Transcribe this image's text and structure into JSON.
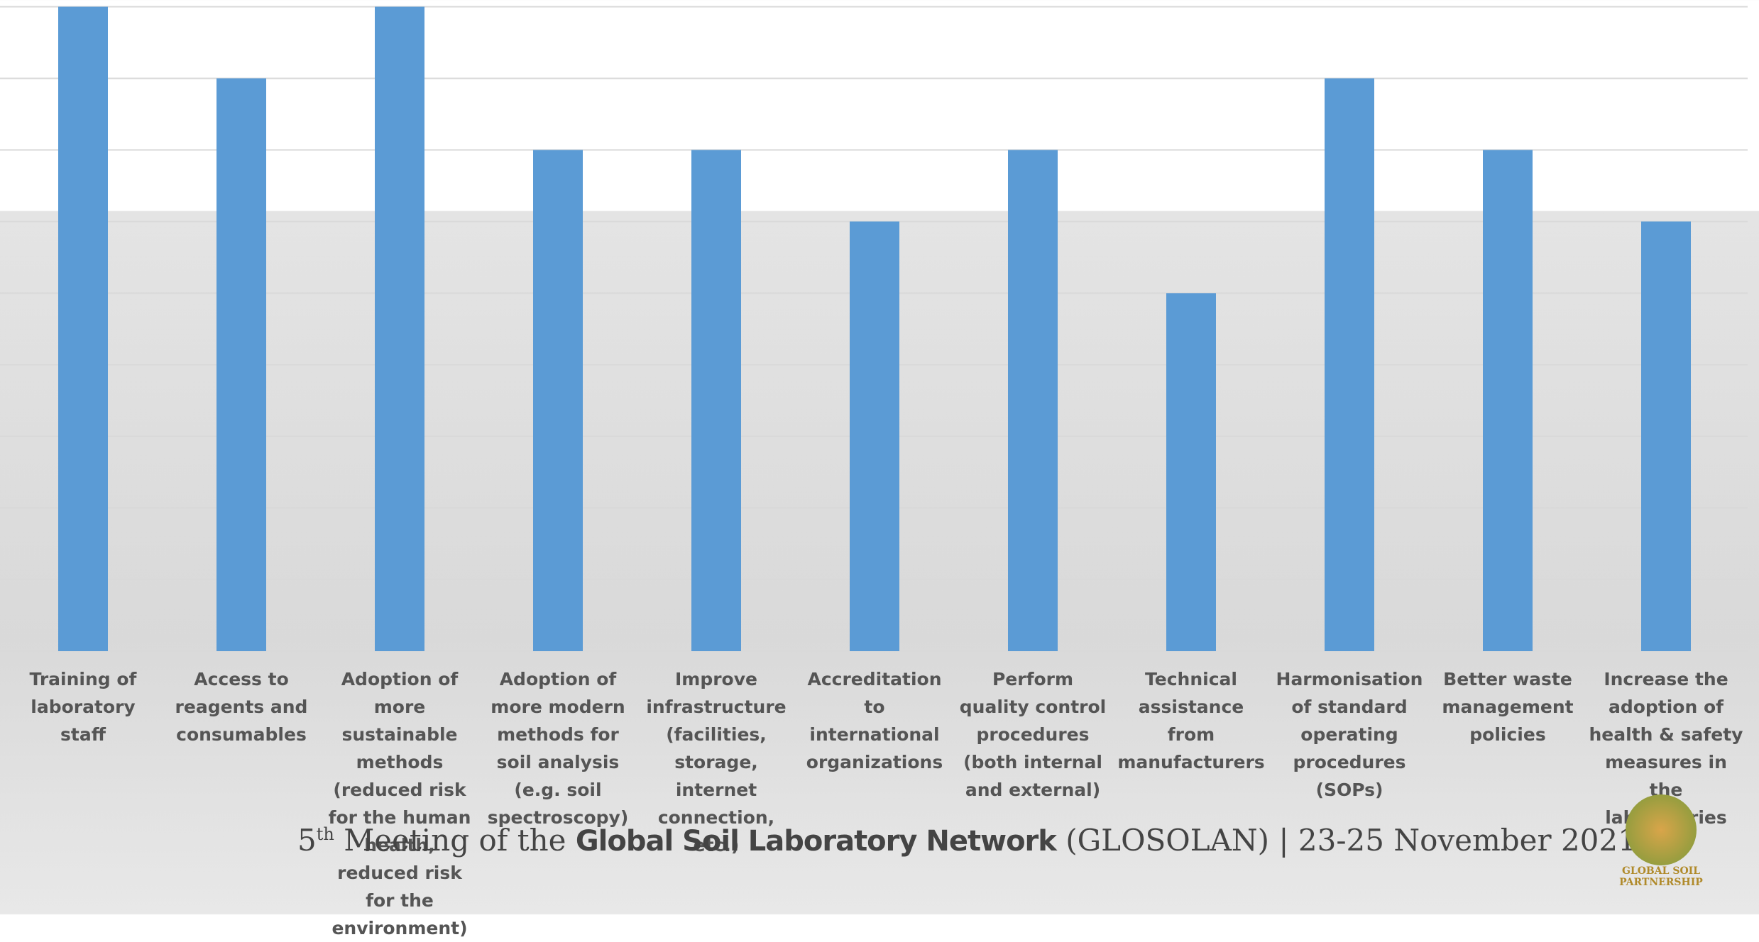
{
  "chart_data": {
    "type": "bar",
    "categories": [
      "Training of laboratory staff",
      "Access to reagents and consumables",
      "Adoption of more sustainable methods (reduced risk for the human health, reduced risk for the environment)",
      "Adoption of more modern methods for soil analysis (e.g. soil spectroscopy)",
      "Improve infrastructure (facilities, storage, internet connection, etc.)",
      "Accreditation to international organizations",
      "Perform quality control procedures (both internal and external)",
      "Technical assistance from manufacturers",
      "Harmonisation of standard operating procedures (SOPs)",
      "Better waste management policies",
      "Increase the adoption of health & safety measures in the laboratories"
    ],
    "values": [
      9,
      8,
      9,
      7,
      7,
      6,
      7,
      5,
      8,
      7,
      6
    ],
    "color": "#5b9bd5",
    "ylim": [
      0,
      9
    ],
    "yticks": [
      0,
      1,
      2,
      3,
      4,
      5,
      6,
      7,
      8,
      9
    ],
    "grid": true
  },
  "footer": {
    "ordinal": "5",
    "ordinal_suffix": "th",
    "text_before": " Meeting of the ",
    "emphasis": "Global Soil Laboratory Network",
    "text_after": " (GLOSOLAN) | 23-25 November 2021"
  },
  "logo": {
    "line1": "GLOBAL SOIL",
    "line2": "PARTNERSHIP"
  }
}
